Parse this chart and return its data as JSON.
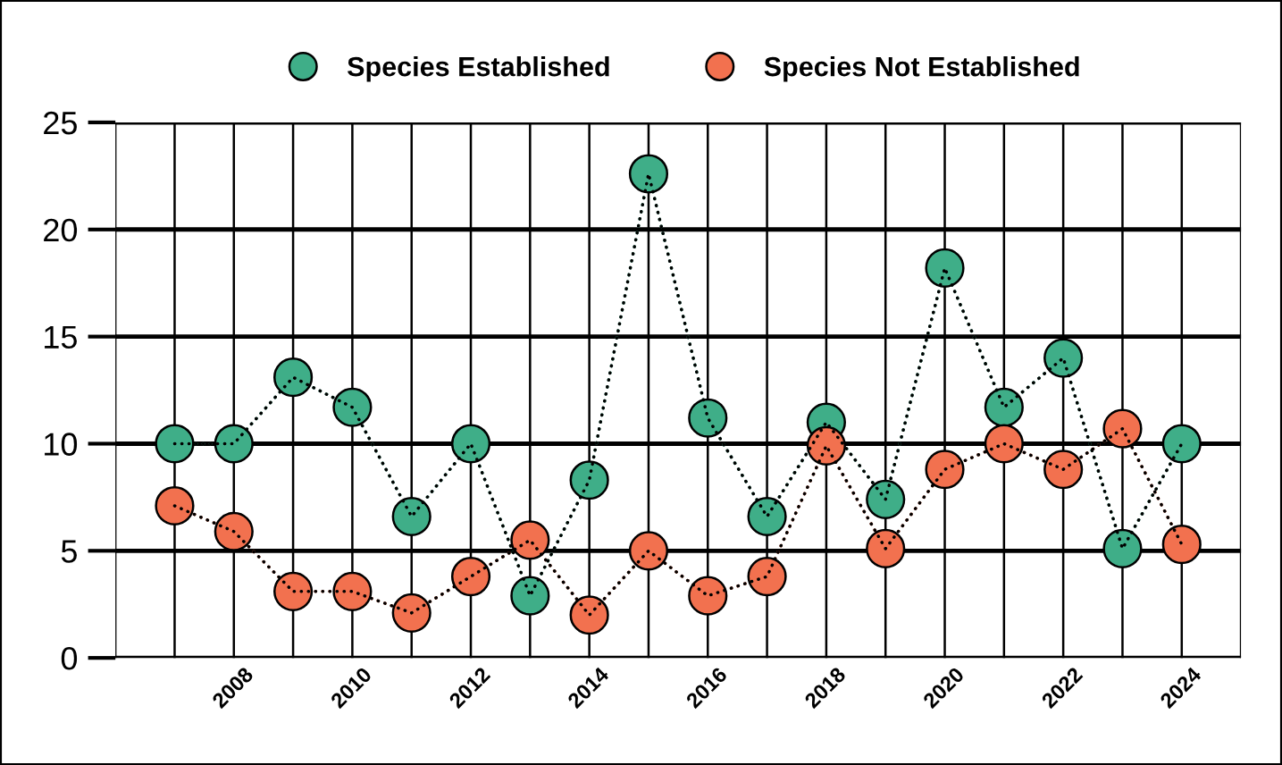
{
  "chart_data": {
    "type": "line",
    "x": [
      2007,
      2008,
      2009,
      2010,
      2011,
      2012,
      2013,
      2014,
      2015,
      2016,
      2017,
      2018,
      2019,
      2020,
      2021,
      2022,
      2023,
      2024
    ],
    "series": [
      {
        "name": "Species Established",
        "color": "#3fae88",
        "values": [
          10.0,
          10.0,
          13.1,
          11.7,
          6.6,
          10.0,
          2.9,
          8.3,
          22.6,
          11.2,
          6.6,
          11.0,
          7.4,
          18.2,
          11.7,
          14.0,
          5.1,
          10.0
        ]
      },
      {
        "name": "Species Not Established",
        "color": "#f2714f",
        "values": [
          7.1,
          5.9,
          3.1,
          3.1,
          2.1,
          3.8,
          5.5,
          2.0,
          5.0,
          2.9,
          3.8,
          9.9,
          5.1,
          8.8,
          10.0,
          8.8,
          10.7,
          5.3
        ]
      }
    ],
    "xlim": [
      2006,
      2025
    ],
    "xticks": [
      {
        "value": 2006,
        "label": null
      },
      {
        "value": 2007,
        "label": null
      },
      2008,
      {
        "value": 2009,
        "label": null
      },
      2010,
      {
        "value": 2011,
        "label": null
      },
      2012,
      {
        "value": 2013,
        "label": null
      },
      2014,
      {
        "value": 2015,
        "label": null
      },
      2016,
      {
        "value": 2017,
        "label": null
      },
      2018,
      {
        "value": 2019,
        "label": null
      },
      2020,
      {
        "value": 2021,
        "label": null
      },
      2022,
      {
        "value": 2023,
        "label": null
      },
      2024,
      {
        "value": 2025,
        "label": null
      }
    ],
    "ylim": [
      0,
      25
    ],
    "yticks": [
      0,
      5,
      10,
      15,
      20,
      25
    ],
    "grid": true,
    "legend": "top",
    "marker": "circle",
    "line_style": "dotted"
  }
}
